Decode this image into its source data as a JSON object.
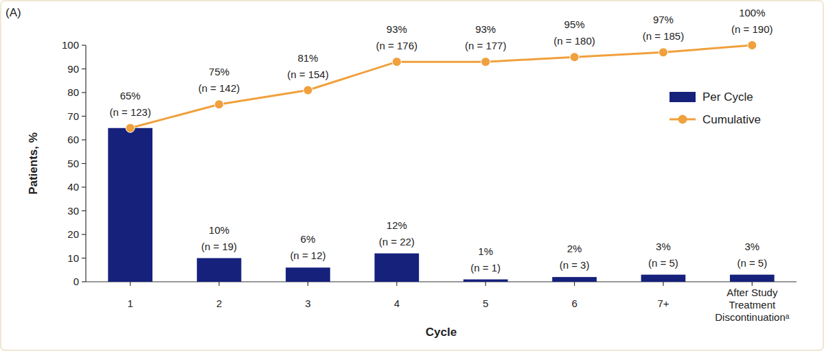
{
  "chart_data": {
    "type": "bar",
    "title": "(A)",
    "x_label": "Cycle",
    "y_label": "Patients, %",
    "categories": [
      "1",
      "2",
      "3",
      "4",
      "5",
      "6",
      "7+",
      "After Study Treatment Discontinuationᵃ"
    ],
    "series": [
      {
        "name": "Per Cycle",
        "type": "bar",
        "color": "#15217b",
        "values": [
          65,
          10,
          6,
          12,
          1,
          2,
          3,
          3
        ],
        "value_labels": [
          null,
          "10% (n = 19)",
          "6% (n = 12)",
          "12% (n = 22)",
          "1% (n = 1)",
          "2% (n = 3)",
          "3% (n = 5)",
          "3% (n = 5)"
        ]
      },
      {
        "name": "Cumulative",
        "type": "line",
        "color": "#f0a03c",
        "marker": "circle",
        "line_style": "solid",
        "values": [
          65,
          75,
          81,
          93,
          93,
          95,
          97,
          100
        ],
        "value_labels": [
          "65% (n = 123)",
          "75% (n = 142)",
          "81% (n = 154)",
          "93% (n = 176)",
          "93% (n = 177)",
          "95% (n = 180)",
          "97% (n = 185)",
          "100% (n = 190)"
        ]
      }
    ],
    "ylim": [
      0,
      100
    ],
    "yticks": [
      0,
      10,
      20,
      30,
      40,
      50,
      60,
      70,
      80,
      90,
      100
    ],
    "grid": false,
    "legend": "upper right",
    "data_labels": true
  }
}
